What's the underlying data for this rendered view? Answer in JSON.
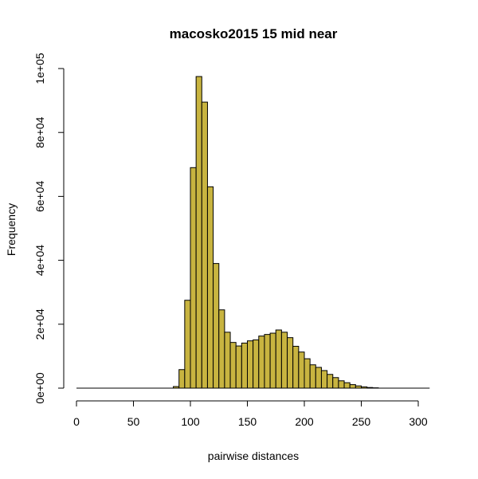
{
  "chart_data": {
    "type": "bar",
    "title": "macosko2015 15 mid near",
    "xlabel": "pairwise distances",
    "ylabel": "Frequency",
    "bar_color": "#C8B440",
    "bin_width": 5,
    "xlim": [
      0,
      310
    ],
    "ylim": [
      0,
      100000
    ],
    "x_ticks": [
      0,
      50,
      100,
      150,
      200,
      250,
      300
    ],
    "x_tick_labels": [
      "0",
      "50",
      "100",
      "150",
      "200",
      "250",
      "300"
    ],
    "y_ticks": [
      0,
      20000,
      40000,
      60000,
      80000,
      100000
    ],
    "y_tick_labels": [
      "0e+00",
      "2e+04",
      "4e+04",
      "6e+04",
      "8e+04",
      "1e+05"
    ],
    "bins": [
      {
        "x": 85,
        "value": 500
      },
      {
        "x": 90,
        "value": 5800
      },
      {
        "x": 95,
        "value": 27500
      },
      {
        "x": 100,
        "value": 69000
      },
      {
        "x": 105,
        "value": 97500
      },
      {
        "x": 110,
        "value": 89500
      },
      {
        "x": 115,
        "value": 63000
      },
      {
        "x": 120,
        "value": 39000
      },
      {
        "x": 125,
        "value": 24500
      },
      {
        "x": 130,
        "value": 17500
      },
      {
        "x": 135,
        "value": 14300
      },
      {
        "x": 140,
        "value": 13200
      },
      {
        "x": 145,
        "value": 14100
      },
      {
        "x": 150,
        "value": 14800
      },
      {
        "x": 155,
        "value": 15100
      },
      {
        "x": 160,
        "value": 16300
      },
      {
        "x": 165,
        "value": 16800
      },
      {
        "x": 170,
        "value": 17200
      },
      {
        "x": 175,
        "value": 18200
      },
      {
        "x": 180,
        "value": 17500
      },
      {
        "x": 185,
        "value": 15800
      },
      {
        "x": 190,
        "value": 13100
      },
      {
        "x": 195,
        "value": 11300
      },
      {
        "x": 200,
        "value": 9200
      },
      {
        "x": 205,
        "value": 7300
      },
      {
        "x": 210,
        "value": 6500
      },
      {
        "x": 215,
        "value": 5500
      },
      {
        "x": 220,
        "value": 4300
      },
      {
        "x": 225,
        "value": 3300
      },
      {
        "x": 230,
        "value": 2300
      },
      {
        "x": 235,
        "value": 1700
      },
      {
        "x": 240,
        "value": 1100
      },
      {
        "x": 245,
        "value": 700
      },
      {
        "x": 250,
        "value": 400
      },
      {
        "x": 255,
        "value": 200
      },
      {
        "x": 260,
        "value": 100
      }
    ]
  }
}
